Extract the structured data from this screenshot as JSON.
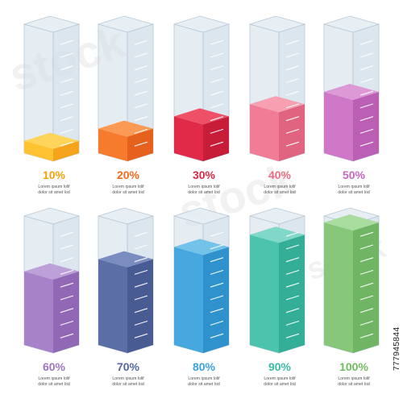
{
  "watermark": {
    "brand": "stock"
  },
  "image_id": "777945844",
  "bars": [
    {
      "label": "10%",
      "value": 10,
      "caption_1": "Lorem ipsum lolif",
      "caption_2": "dolor sit amet lod",
      "colors": {
        "front": "#ffc230",
        "side": "#f5a51d",
        "top": "#ffd45a",
        "label": "#f5a10a"
      }
    },
    {
      "label": "20%",
      "value": 20,
      "caption_1": "Lorem ipsum lolif",
      "caption_2": "dolor sit amet lod",
      "colors": {
        "front": "#f77b2d",
        "side": "#e6611d",
        "top": "#fb9a55",
        "label": "#f06a1e"
      }
    },
    {
      "label": "30%",
      "value": 30,
      "caption_1": "Lorem ipsum lolif",
      "caption_2": "dolor sit amet lod",
      "colors": {
        "front": "#e12a48",
        "side": "#c81d38",
        "top": "#ee5068",
        "label": "#d82a42"
      }
    },
    {
      "label": "40%",
      "value": 40,
      "caption_1": "Lorem ipsum lolif",
      "caption_2": "dolor sit amet lod",
      "colors": {
        "front": "#f07c95",
        "side": "#e06480",
        "top": "#f6a0b2",
        "label": "#ea6d86"
      }
    },
    {
      "label": "50%",
      "value": 50,
      "caption_1": "Lorem ipsum lolif",
      "caption_2": "dolor sit amet lod",
      "colors": {
        "front": "#cf78c8",
        "side": "#bb5fb5",
        "top": "#dd98d6",
        "label": "#c467bd"
      }
    },
    {
      "label": "60%",
      "value": 60,
      "caption_1": "Lorem ipsum lolif",
      "caption_2": "dolor sit amet lod",
      "colors": {
        "front": "#a882c8",
        "side": "#9168b5",
        "top": "#bea0d8",
        "label": "#9d74c0"
      }
    },
    {
      "label": "70%",
      "value": 70,
      "caption_1": "Lorem ipsum lolif",
      "caption_2": "dolor sit amet lod",
      "colors": {
        "front": "#5b6ea6",
        "side": "#485b93",
        "top": "#7b8dc0",
        "label": "#5568a2"
      }
    },
    {
      "label": "80%",
      "value": 80,
      "caption_1": "Lorem ipsum lolif",
      "caption_2": "dolor sit amet lod",
      "colors": {
        "front": "#46a8de",
        "side": "#2f92cc",
        "top": "#72c2ea",
        "label": "#3aa2dc"
      }
    },
    {
      "label": "90%",
      "value": 90,
      "caption_1": "Lorem ipsum lolif",
      "caption_2": "dolor sit amet lod",
      "colors": {
        "front": "#4cc4ad",
        "side": "#35ae98",
        "top": "#80d8c8",
        "label": "#38bba2"
      }
    },
    {
      "label": "100%",
      "value": 100,
      "caption_1": "Lorem ipsum lolif",
      "caption_2": "dolor sit amet lod",
      "colors": {
        "front": "#86c77a",
        "side": "#6fb564",
        "top": "#a9dc9f",
        "label": "#6fbd5f"
      }
    }
  ],
  "colors": {
    "glass": "#cfdde8",
    "glass_edge": "#b8c8d6",
    "caption": "#555555"
  }
}
